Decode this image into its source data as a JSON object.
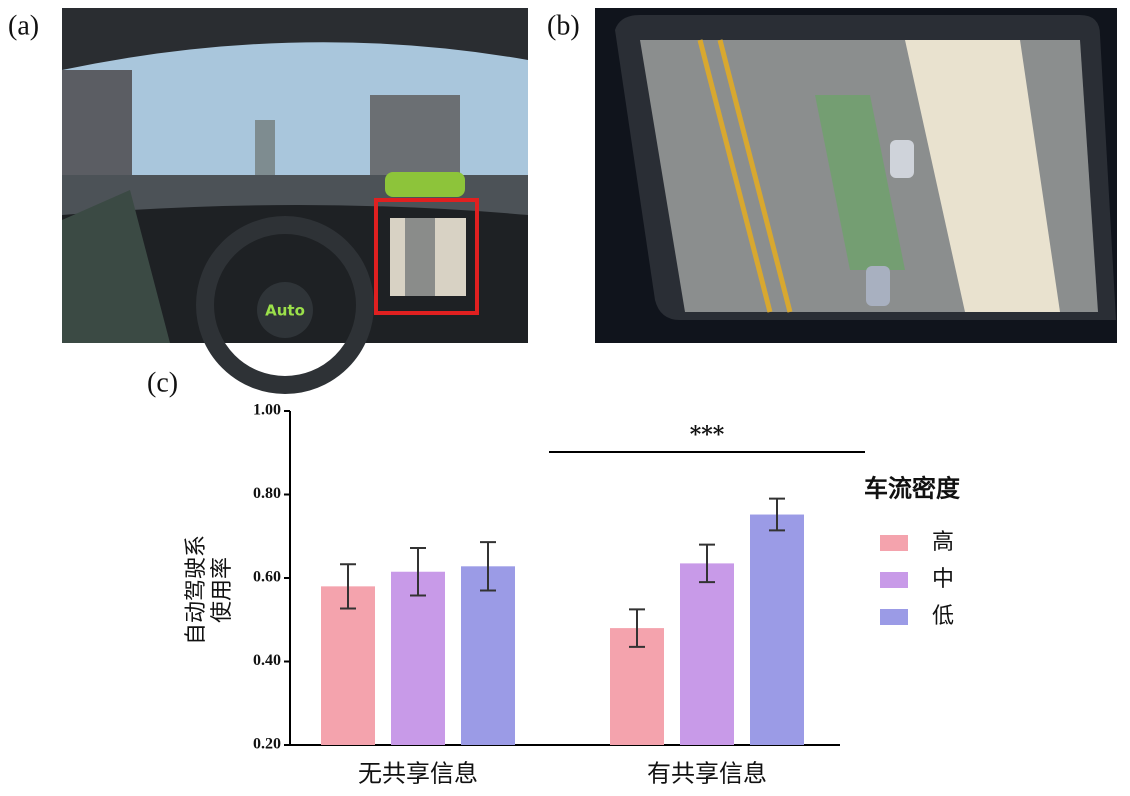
{
  "panel_labels": [
    "(a)",
    "(b)"
  ],
  "image_texts": [
    "Auto"
  ],
  "chart_data": {
    "type": "bar",
    "panel_label": "(c)",
    "categories": [
      "无共享信息",
      "有共享信息"
    ],
    "ylabel_lines": [
      "自动驾驶系",
      "使用率"
    ],
    "legend_title": "车流密度",
    "series": [
      {
        "name": "高",
        "color": "#f4a3ad",
        "values": [
          0.58,
          0.48
        ],
        "errors": [
          0.053,
          0.045
        ]
      },
      {
        "name": "中",
        "color": "#c89ae8",
        "values": [
          0.615,
          0.635
        ],
        "errors": [
          0.057,
          0.045
        ]
      },
      {
        "name": "低",
        "color": "#9b9be6",
        "values": [
          0.628,
          0.752
        ],
        "errors": [
          0.058,
          0.038
        ]
      }
    ],
    "ylim": [
      0.2,
      1.0
    ],
    "yticks": [
      {
        "value": 0.2,
        "label": "0.20"
      },
      {
        "value": 0.4,
        "label": "0.40"
      },
      {
        "value": 0.6,
        "label": "0.60"
      },
      {
        "value": 0.8,
        "label": "0.80"
      },
      {
        "value": 1.0,
        "label": "1.00"
      }
    ],
    "annotation": {
      "text": "***",
      "category": 1
    }
  }
}
